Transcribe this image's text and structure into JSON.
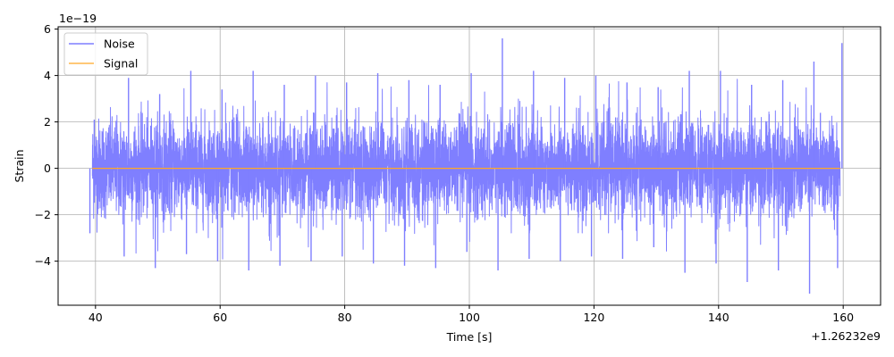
{
  "chart_data": {
    "type": "line",
    "xlabel": "Time [s]",
    "ylabel": "Strain",
    "xlim": [
      34,
      166
    ],
    "ylim": [
      -5.9,
      6.1
    ],
    "x_offset_label": "+1.26232e9",
    "y_scale_label": "1e−19",
    "x_ticks": [
      40,
      60,
      80,
      100,
      120,
      140,
      160
    ],
    "x_tick_labels": [
      "40",
      "60",
      "80",
      "100",
      "120",
      "140",
      "160"
    ],
    "y_ticks": [
      -4,
      -2,
      0,
      2,
      4,
      6
    ],
    "y_tick_labels": [
      "−4",
      "−2",
      "0",
      "2",
      "4",
      "6"
    ],
    "grid": true,
    "legend_position": "top-left",
    "x_range": [
      39.5,
      159.5
    ],
    "series": [
      {
        "name": "Noise",
        "color": "#7f7fff",
        "envelope_x": [
          39.5,
          45,
          50,
          55,
          60,
          65,
          70,
          75,
          80,
          85,
          90,
          95,
          100,
          105,
          110,
          115,
          120,
          125,
          130,
          135,
          140,
          145,
          150,
          155,
          159.5
        ],
        "envelope_max": [
          2.1,
          3.9,
          3.2,
          4.2,
          3.4,
          4.2,
          3.6,
          4.0,
          3.7,
          4.1,
          3.8,
          3.6,
          4.1,
          5.6,
          4.2,
          3.9,
          4.0,
          3.7,
          3.5,
          4.2,
          4.2,
          3.6,
          3.8,
          4.6,
          5.4
        ],
        "envelope_min": [
          -2.8,
          -3.8,
          -4.3,
          -3.7,
          -4.0,
          -4.4,
          -4.2,
          -4.0,
          -3.8,
          -4.1,
          -4.2,
          -4.3,
          -3.6,
          -4.4,
          -3.9,
          -4.0,
          -3.8,
          -3.9,
          -3.4,
          -4.5,
          -4.1,
          -4.9,
          -4.4,
          -5.4,
          -4.3
        ],
        "sigma": 1.05
      },
      {
        "name": "Signal",
        "color": "#ffa726",
        "x": [
          39.5,
          159.5
        ],
        "y": [
          0,
          0
        ]
      }
    ]
  }
}
